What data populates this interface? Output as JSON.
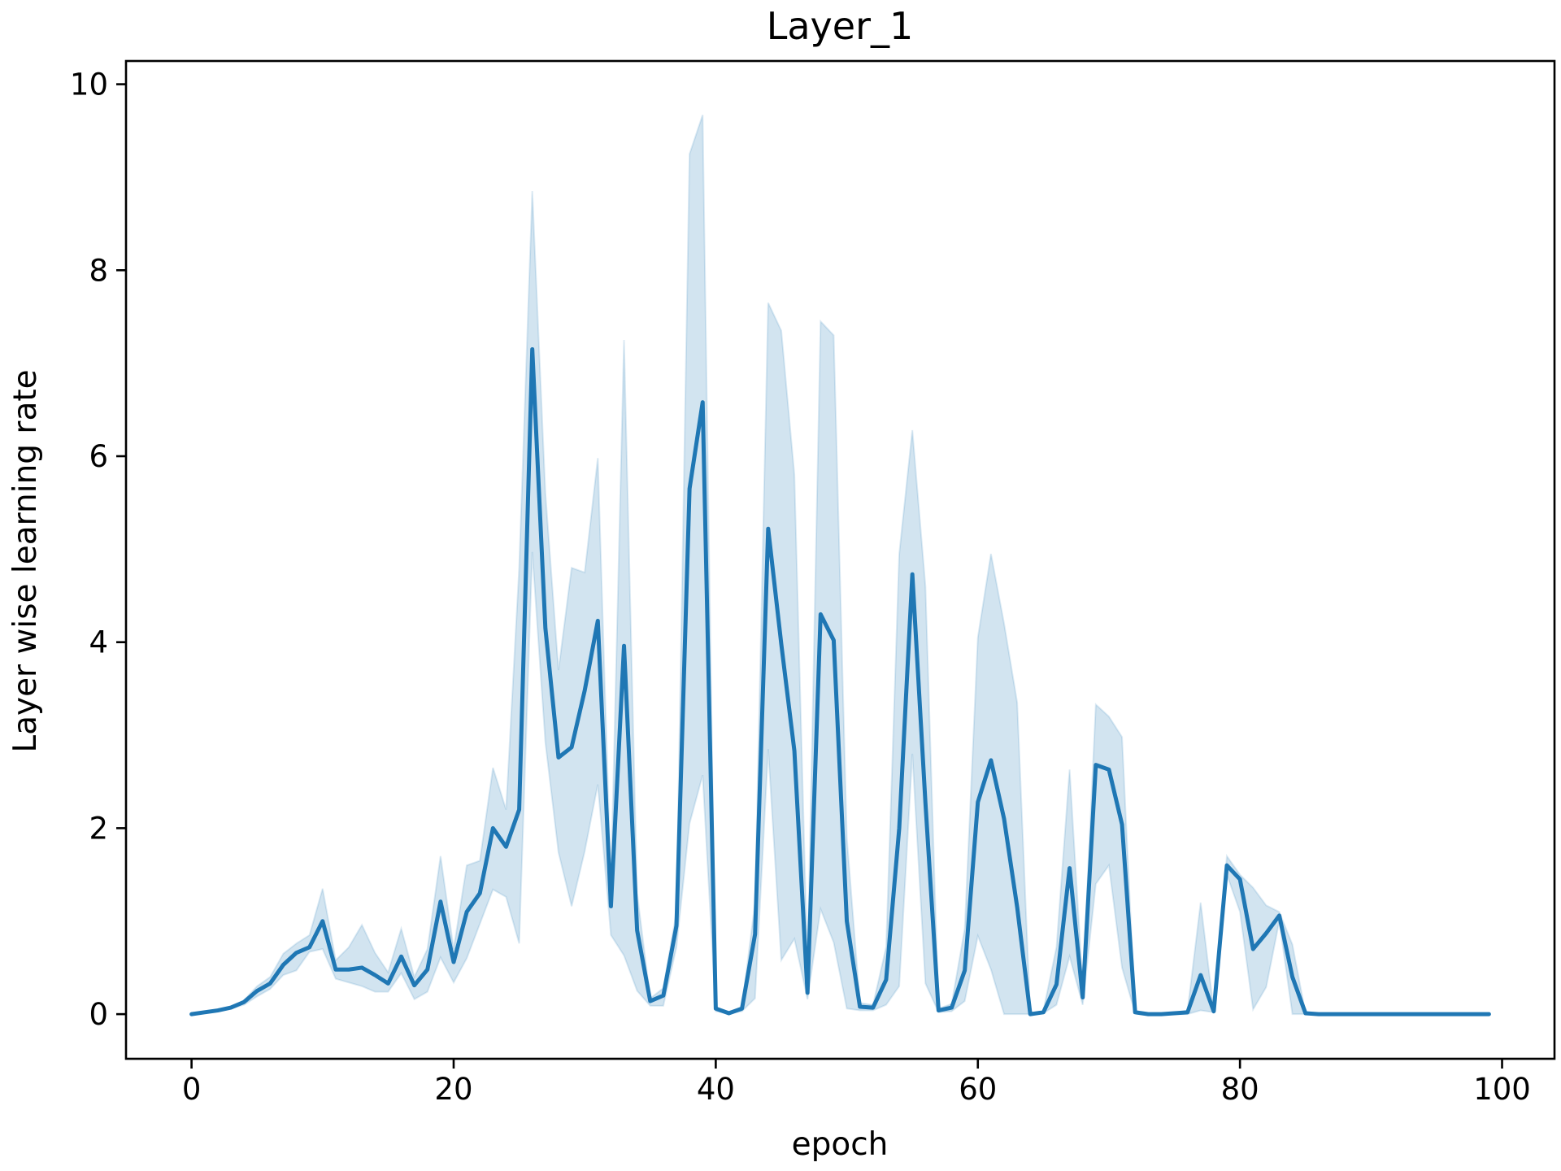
{
  "chart_data": {
    "type": "line",
    "title": "Layer_1",
    "xlabel": "epoch",
    "ylabel": "Layer wise learning rate",
    "xlim": [
      -5,
      104
    ],
    "ylim": [
      -0.48,
      10.25
    ],
    "xticks": [
      0,
      20,
      40,
      60,
      80,
      100
    ],
    "yticks": [
      0,
      2,
      4,
      6,
      8,
      10
    ],
    "xtick_labels": [
      "0",
      "20",
      "40",
      "60",
      "80",
      "100"
    ],
    "ytick_labels": [
      "0",
      "2",
      "4",
      "6",
      "8",
      "10"
    ],
    "grid": false,
    "line_color": "#1f77b4",
    "band_color": "#1f77b4",
    "band_opacity": 0.2,
    "series": [
      {
        "x": [
          0,
          1,
          2,
          3,
          4,
          5,
          6,
          7,
          8,
          9,
          10,
          11,
          12,
          13,
          14,
          15,
          16,
          17,
          18,
          19,
          20,
          21,
          22,
          23,
          24,
          25,
          26,
          27,
          28,
          29,
          30,
          31,
          32,
          33,
          34,
          35,
          36,
          37,
          38,
          39,
          40,
          41,
          42,
          43,
          44,
          45,
          46,
          47,
          48,
          49,
          50,
          51,
          52,
          53,
          54,
          55,
          56,
          57,
          58,
          59,
          60,
          61,
          62,
          63,
          64,
          65,
          66,
          67,
          68,
          69,
          70,
          71,
          72,
          73,
          74,
          75,
          76,
          77,
          78,
          79,
          80,
          81,
          82,
          83,
          84,
          85,
          86,
          87,
          88,
          89,
          90,
          91,
          92,
          93,
          94,
          95,
          96,
          97,
          98,
          99
        ],
        "mean": [
          0.0,
          0.02,
          0.04,
          0.07,
          0.13,
          0.25,
          0.33,
          0.53,
          0.66,
          0.72,
          1.0,
          0.48,
          0.48,
          0.5,
          0.42,
          0.33,
          0.62,
          0.31,
          0.48,
          1.21,
          0.56,
          1.1,
          1.3,
          2.0,
          1.8,
          2.2,
          7.15,
          4.15,
          2.76,
          2.87,
          3.48,
          4.23,
          1.16,
          3.96,
          0.9,
          0.14,
          0.2,
          0.95,
          5.65,
          6.58,
          0.06,
          0.01,
          0.06,
          0.86,
          5.22,
          3.98,
          2.83,
          0.23,
          4.3,
          4.02,
          1.0,
          0.08,
          0.07,
          0.37,
          2.0,
          4.73,
          2.27,
          0.04,
          0.07,
          0.47,
          2.28,
          2.73,
          2.1,
          1.15,
          0.0,
          0.02,
          0.32,
          1.57,
          0.18,
          2.68,
          2.63,
          2.04,
          0.02,
          0.0,
          0.0,
          0.01,
          0.02,
          0.42,
          0.03,
          1.6,
          1.45,
          0.7,
          0.87,
          1.06,
          0.4,
          0.01,
          0.0,
          0.0,
          0.0,
          0.0,
          0.0,
          0.0,
          0.0,
          0.0,
          0.0,
          0.0,
          0.0,
          0.0,
          0.0,
          0.0
        ],
        "lower": [
          0.0,
          0.02,
          0.04,
          0.06,
          0.1,
          0.19,
          0.27,
          0.42,
          0.47,
          0.67,
          0.7,
          0.38,
          0.34,
          0.3,
          0.24,
          0.24,
          0.44,
          0.16,
          0.24,
          0.61,
          0.34,
          0.6,
          0.97,
          1.34,
          1.26,
          0.76,
          4.97,
          2.92,
          1.74,
          1.16,
          1.75,
          2.47,
          0.85,
          0.63,
          0.25,
          0.09,
          0.09,
          0.72,
          2.05,
          2.57,
          0.03,
          0.01,
          0.03,
          0.17,
          2.85,
          0.58,
          0.81,
          0.16,
          1.13,
          0.77,
          0.06,
          0.04,
          0.04,
          0.1,
          0.3,
          2.8,
          0.33,
          0.02,
          0.03,
          0.14,
          0.84,
          0.48,
          0.0,
          0.0,
          0.0,
          0.01,
          0.1,
          0.62,
          0.1,
          1.4,
          1.6,
          0.5,
          0.01,
          0.0,
          0.0,
          0.0,
          0.0,
          0.04,
          0.02,
          1.5,
          1.1,
          0.05,
          0.29,
          1.0,
          0.0,
          0.0,
          0.0,
          0.0,
          0.0,
          0.0,
          0.0,
          0.0,
          0.0,
          0.0,
          0.0,
          0.0,
          0.0,
          0.0,
          0.0,
          0.0
        ],
        "upper": [
          0.0,
          0.02,
          0.04,
          0.07,
          0.15,
          0.3,
          0.4,
          0.65,
          0.76,
          0.85,
          1.35,
          0.58,
          0.72,
          0.96,
          0.66,
          0.45,
          0.92,
          0.4,
          0.7,
          1.7,
          0.7,
          1.6,
          1.65,
          2.65,
          2.2,
          4.8,
          8.85,
          5.6,
          3.7,
          4.8,
          4.75,
          5.98,
          1.4,
          7.25,
          1.3,
          0.17,
          0.28,
          1.1,
          9.25,
          9.67,
          0.08,
          0.01,
          0.08,
          1.2,
          7.65,
          7.35,
          5.8,
          0.5,
          7.45,
          7.3,
          1.9,
          0.12,
          0.1,
          0.72,
          4.95,
          6.28,
          4.6,
          0.06,
          0.11,
          0.92,
          4.05,
          4.95,
          4.2,
          3.35,
          0.0,
          0.04,
          0.72,
          2.63,
          0.3,
          3.33,
          3.2,
          2.98,
          0.03,
          0.0,
          0.0,
          0.01,
          0.04,
          1.2,
          0.04,
          1.7,
          1.5,
          1.36,
          1.17,
          1.1,
          0.75,
          0.01,
          0.0,
          0.0,
          0.0,
          0.0,
          0.0,
          0.0,
          0.0,
          0.0,
          0.0,
          0.0,
          0.0,
          0.0,
          0.0,
          0.0
        ]
      }
    ]
  }
}
